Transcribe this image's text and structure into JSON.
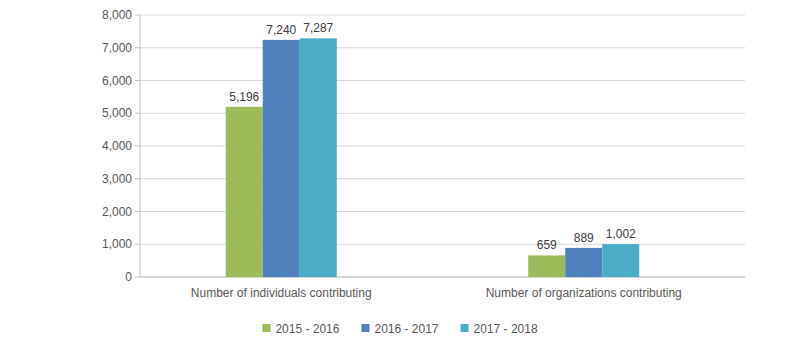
{
  "chart_data": {
    "type": "bar",
    "categories": [
      "Number of individuals contributing",
      "Number of organizations contributing"
    ],
    "series": [
      {
        "name": "2015 - 2016",
        "color": "#9bbb59",
        "values": [
          5196,
          659
        ],
        "value_labels": [
          "5,196",
          "659"
        ]
      },
      {
        "name": "2016 - 2017",
        "color": "#4f81bd",
        "values": [
          7240,
          889
        ],
        "value_labels": [
          "7,240",
          "889"
        ]
      },
      {
        "name": "2017 - 2018",
        "color": "#4bacc6",
        "values": [
          7287,
          1002
        ],
        "value_labels": [
          "7,287",
          "1,002"
        ]
      }
    ],
    "ylim": [
      0,
      8000
    ],
    "yticks": [
      0,
      {
        "value": 1000,
        "label": "1,000"
      },
      {
        "value": 2000,
        "label": "2,000"
      },
      {
        "value": 3000,
        "label": "3,000"
      },
      {
        "value": 4000,
        "label": "4,000"
      },
      {
        "value": 5000,
        "label": "5,000"
      },
      {
        "value": 6000,
        "label": "6,000"
      },
      {
        "value": 7000,
        "label": "7,000"
      },
      {
        "value": 8000,
        "label": "8,000"
      }
    ],
    "grid": true,
    "legend": "bottom",
    "data_labels": true
  }
}
